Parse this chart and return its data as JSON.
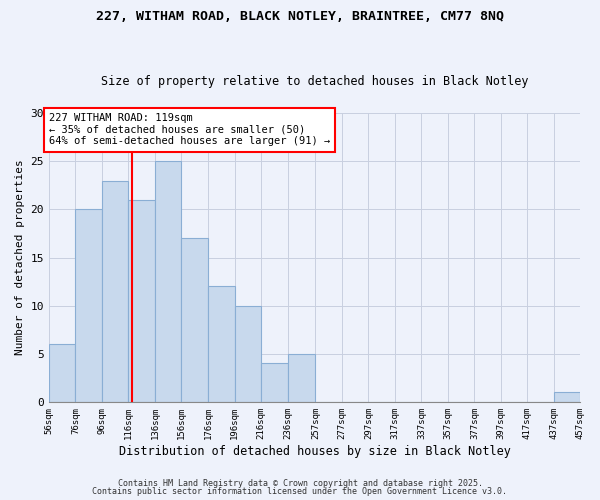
{
  "title1": "227, WITHAM ROAD, BLACK NOTLEY, BRAINTREE, CM77 8NQ",
  "title2": "Size of property relative to detached houses in Black Notley",
  "xlabel": "Distribution of detached houses by size in Black Notley",
  "ylabel": "Number of detached properties",
  "bin_edges": [
    56,
    76,
    96,
    116,
    136,
    156,
    176,
    196,
    216,
    236,
    257,
    277,
    297,
    317,
    337,
    357,
    377,
    397,
    417,
    437,
    457
  ],
  "counts": [
    6,
    20,
    23,
    21,
    25,
    17,
    12,
    10,
    4,
    5,
    0,
    0,
    0,
    0,
    0,
    0,
    0,
    0,
    0,
    1
  ],
  "bar_color": "#c8d9ed",
  "bar_edge_color": "#8aaed4",
  "vline_x": 119,
  "vline_color": "red",
  "ylim": [
    0,
    30
  ],
  "yticks": [
    0,
    5,
    10,
    15,
    20,
    25,
    30
  ],
  "annotation_text": "227 WITHAM ROAD: 119sqm\n← 35% of detached houses are smaller (50)\n64% of semi-detached houses are larger (91) →",
  "annotation_box_color": "white",
  "annotation_box_edge": "red",
  "footer1": "Contains HM Land Registry data © Crown copyright and database right 2025.",
  "footer2": "Contains public sector information licensed under the Open Government Licence v3.0.",
  "background_color": "#eef2fb",
  "grid_color": "#c8cfe0"
}
